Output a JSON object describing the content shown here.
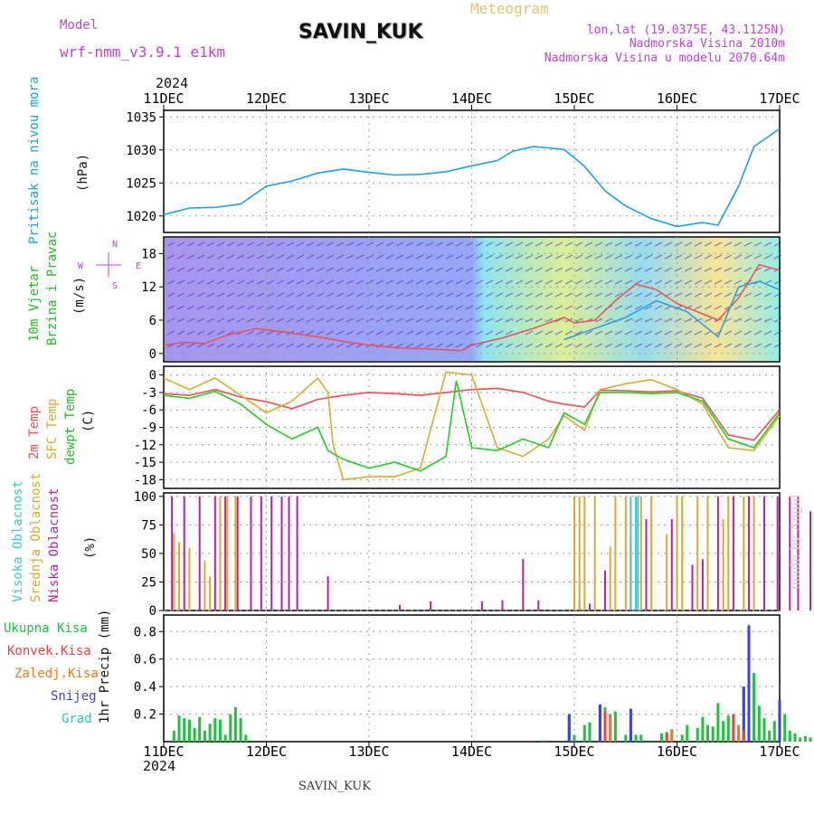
{
  "header": {
    "model_label": "Model",
    "model_value": "wrf-nmm_v3.9.1 e1km",
    "station": "SAVIN_KUK",
    "product": "Meteogram",
    "lonlat": "lon,lat (19.0375E, 43.1125N)",
    "elevation": "Nadmorska Visina 2010m",
    "model_elevation": "Nadmorska Visina u modelu 2070.64m",
    "footer_station": "SAVIN_KUK",
    "credit": "made by Angel",
    "year_top": "2024",
    "year_bottom": "2024"
  },
  "colors": {
    "pressure": "#1ca0e6",
    "temp2m": "#f04e4e",
    "sfc_temp": "#e0a830",
    "dewpt": "#20d020",
    "high_cloud": "#3cc8e0",
    "mid_cloud": "#e0a830",
    "low_cloud": "#c020a0",
    "total_precip": "#20c040",
    "conv_precip": "#f04040",
    "frozen_precip": "#f07820",
    "snow": "#4040e0",
    "graupel": "#20c8c8",
    "wind_label": "#20c020",
    "wind_label2": "#c040e0"
  },
  "x_axis": {
    "tick_labels": [
      "11DEC",
      "12DEC",
      "13DEC",
      "14DEC",
      "15DEC",
      "16DEC",
      "17DEC"
    ]
  },
  "chart_data": [
    {
      "type": "line",
      "id": "pressure",
      "ylabel_lines": [
        "Pritisak na nivou mora",
        "(hPa)"
      ],
      "yticks": [
        "1020",
        "1025",
        "1030",
        "1035"
      ],
      "ylim": [
        1017.5,
        1036
      ],
      "series": [
        {
          "color_key": "pressure",
          "x": [
            0,
            0.25,
            0.5,
            0.75,
            1,
            1.25,
            1.5,
            1.75,
            2,
            2.25,
            2.5,
            2.75,
            3,
            3.25,
            3.4,
            3.6,
            3.9,
            4.1,
            4.3,
            4.5,
            4.75,
            5,
            5.25,
            5.4,
            5.6,
            5.75,
            6
          ],
          "y": [
            1020.2,
            1021.2,
            1021.3,
            1021.8,
            1024.5,
            1025.3,
            1026.5,
            1027.1,
            1026.6,
            1026.2,
            1026.3,
            1026.7,
            1027.6,
            1028.4,
            1029.8,
            1030.5,
            1030.1,
            1027.5,
            1023.8,
            1021.5,
            1019.6,
            1018.4,
            1019.0,
            1018.6,
            1024.5,
            1030.5,
            1033.2
          ]
        }
      ]
    },
    {
      "type": "line",
      "id": "wind",
      "ylabel_lines": [
        "10m Vjetar",
        "Brzina i Pravac",
        "(m/s)"
      ],
      "yticks": [
        "0",
        "6",
        "12",
        "18"
      ],
      "ylim": [
        -1.5,
        21
      ],
      "compass": [
        "N",
        "E",
        "S",
        "W"
      ],
      "series": [
        {
          "name": "gust",
          "color_key": "temp2m",
          "x": [
            0,
            0.2,
            0.4,
            0.6,
            0.9,
            1.2,
            1.5,
            1.8,
            2.0,
            2.3,
            2.6,
            2.9,
            3.0,
            3.3,
            3.6,
            3.9,
            4.0,
            4.2,
            4.4,
            4.6,
            4.8,
            5.0,
            5.2,
            5.4,
            5.6,
            5.8,
            6
          ],
          "y": [
            1.5,
            2.0,
            1.8,
            3.2,
            4.5,
            3.8,
            3.0,
            2.0,
            1.5,
            1.0,
            0.8,
            0.5,
            1.5,
            2.8,
            4.5,
            6.5,
            5.5,
            6.0,
            9.5,
            12.5,
            11.5,
            9.0,
            7.5,
            6.0,
            10.0,
            16.0,
            15.0
          ]
        },
        {
          "name": "mean",
          "color_key": "pressure",
          "x": [
            3.9,
            4.2,
            4.5,
            4.8,
            5.1,
            5.4,
            5.6,
            5.8,
            6
          ],
          "y": [
            2.5,
            4.5,
            6.5,
            9.5,
            7.5,
            3.0,
            12.0,
            13.0,
            11.5
          ]
        }
      ]
    },
    {
      "type": "line",
      "id": "temperature",
      "ylabel_lines": [
        "2m Temp",
        "SFC Temp",
        "dewpt Temp",
        "(C)"
      ],
      "yticks": [
        "0",
        "-3",
        "-6",
        "-9",
        "-12",
        "-15",
        "-18"
      ],
      "ylim": [
        -19.5,
        1.5
      ],
      "series": [
        {
          "name": "2m Temp",
          "color_key": "temp2m",
          "x": [
            0,
            0.25,
            0.5,
            0.75,
            1,
            1.25,
            1.5,
            1.75,
            2,
            2.25,
            2.5,
            2.75,
            3,
            3.25,
            3.5,
            3.75,
            3.9,
            4.1,
            4.25,
            4.5,
            4.75,
            5,
            5.25,
            5.5,
            5.75,
            6
          ],
          "y": [
            -3.2,
            -3.5,
            -2.5,
            -3.8,
            -4.6,
            -5.8,
            -4.2,
            -3.5,
            -3.0,
            -3.2,
            -3.5,
            -3.0,
            -2.5,
            -2.3,
            -3.0,
            -4.5,
            -5.0,
            -5.5,
            -2.6,
            -2.7,
            -2.9,
            -2.7,
            -4.0,
            -10.3,
            -11.2,
            -6.0
          ]
        },
        {
          "name": "SFC Temp",
          "color_key": "sfc_temp",
          "x": [
            0,
            0.25,
            0.5,
            0.75,
            1,
            1.25,
            1.5,
            1.6,
            1.65,
            1.75,
            2,
            2.25,
            2.5,
            2.75,
            3,
            3.25,
            3.5,
            3.75,
            3.9,
            4.1,
            4.25,
            4.5,
            4.75,
            5,
            5.25,
            5.5,
            5.75,
            6
          ],
          "y": [
            -0.5,
            -2.5,
            -0.5,
            -3.5,
            -6.5,
            -4.5,
            -0.5,
            -3.0,
            -12.0,
            -18.0,
            -17.5,
            -17.5,
            -16.0,
            0.5,
            0.0,
            -12.5,
            -14.0,
            -11.0,
            -7.0,
            -9.5,
            -2.5,
            -1.5,
            -0.8,
            -2.5,
            -5.0,
            -12.5,
            -13.0,
            -7.0
          ]
        },
        {
          "name": "dewpt Temp",
          "color_key": "dewpt",
          "x": [
            0,
            0.25,
            0.5,
            0.75,
            1,
            1.25,
            1.5,
            1.6,
            1.75,
            2,
            2.25,
            2.5,
            2.75,
            2.85,
            3,
            3.25,
            3.5,
            3.75,
            3.9,
            4.1,
            4.25,
            4.5,
            4.75,
            5,
            5.25,
            5.5,
            5.75,
            6
          ],
          "y": [
            -3.5,
            -4.0,
            -2.8,
            -5.0,
            -8.5,
            -11.0,
            -9.0,
            -13.0,
            -14.5,
            -16.0,
            -15.0,
            -16.5,
            -14.0,
            -1.0,
            -12.5,
            -13.0,
            -11.0,
            -12.5,
            -6.5,
            -8.5,
            -3.0,
            -3.0,
            -3.2,
            -3.0,
            -4.5,
            -11.0,
            -12.5,
            -6.5
          ]
        }
      ]
    },
    {
      "type": "bar",
      "id": "clouds",
      "ylabel_lines": [
        "Visoka Oblacnost",
        "Srednja Oblacnost",
        "Niska Oblacnost",
        "(%)"
      ],
      "yticks": [
        "0",
        "25",
        "50",
        "75",
        "100"
      ],
      "ylim": [
        0,
        103
      ],
      "series": [
        {
          "name": "Niska Oblacnost",
          "color_key": "low_cloud",
          "x": [
            0.08,
            0.2,
            0.35,
            0.5,
            0.6,
            0.72,
            0.85,
            0.95,
            1.05,
            1.15,
            1.22,
            1.3,
            1.6,
            2.3,
            2.6,
            3.1,
            3.3,
            3.5,
            3.65,
            4.05,
            4.15,
            4.3,
            4.55,
            4.7,
            4.95,
            5.15,
            5.25,
            5.4,
            5.55,
            5.7,
            5.85,
            5.98,
            6.1,
            6.18,
            6.3,
            6.45,
            6.55,
            6.75,
            6.85,
            6.92,
            6.98
          ],
          "y": [
            100,
            100,
            100,
            100,
            100,
            100,
            100,
            100,
            100,
            100,
            100,
            100,
            30,
            5,
            8,
            8,
            9,
            45,
            9,
            5,
            6,
            35,
            60,
            80,
            80,
            40,
            45,
            100,
            100,
            100,
            100,
            100,
            100,
            100,
            87,
            85,
            80,
            55,
            87,
            87,
            87
          ]
        },
        {
          "name": "Srednja Oblacnost",
          "color_key": "mid_cloud",
          "x": [
            0.1,
            0.15,
            0.25,
            0.4,
            0.45,
            0.55,
            0.62,
            0.7,
            4.0,
            4.05,
            4.1,
            4.2,
            4.35,
            4.4,
            4.5,
            4.6,
            4.65,
            4.75,
            4.9,
            5.0,
            5.05,
            5.2,
            5.3,
            5.45,
            5.5,
            5.65,
            5.75
          ],
          "y": [
            68,
            60,
            55,
            44,
            30,
            100,
            100,
            100,
            100,
            100,
            100,
            100,
            56,
            100,
            100,
            100,
            100,
            100,
            67,
            100,
            100,
            100,
            100,
            80,
            100,
            100,
            100
          ]
        },
        {
          "name": "Visoka Oblacnost",
          "color_key": "high_cloud",
          "x": [
            4.55,
            4.6,
            4.62
          ],
          "y": [
            100,
            100,
            100
          ]
        }
      ]
    },
    {
      "type": "bar",
      "id": "precip",
      "ylabel_lines": [
        "1hr Precip (mm)"
      ],
      "yticks": [
        "0.2",
        "0.4",
        "0.6",
        "0.8"
      ],
      "ylim": [
        0,
        0.92
      ],
      "legend": [
        "Ukupna Kisa",
        "Konvek.Kisa",
        "Zaledj.Kisa",
        "Snijeg",
        "Grad"
      ],
      "series": [
        {
          "name": "Ukupna Kisa",
          "color_key": "total_precip",
          "x": [
            0.1,
            0.15,
            0.2,
            0.25,
            0.3,
            0.35,
            0.4,
            0.45,
            0.5,
            0.55,
            0.6,
            0.65,
            0.7,
            0.75,
            0.8,
            3.7,
            3.95,
            4.0,
            4.1,
            4.15,
            4.25,
            4.3,
            4.35,
            4.4,
            4.5,
            4.55,
            4.6,
            4.65,
            4.85,
            4.9,
            4.95,
            5.05,
            5.1,
            5.2,
            5.25,
            5.3,
            5.35,
            5.4,
            5.45,
            5.5,
            5.55,
            5.6,
            5.65,
            5.7,
            5.75,
            5.8,
            5.85,
            5.9,
            5.95,
            6.0,
            6.05,
            6.1,
            6.15,
            6.2,
            6.25,
            6.3,
            6.35,
            6.4,
            6.45,
            6.5,
            6.55,
            6.6,
            6.65,
            6.7,
            6.75,
            6.8,
            6.85,
            6.9,
            6.95
          ],
          "y": [
            0.08,
            0.19,
            0.17,
            0.16,
            0.1,
            0.18,
            0.08,
            0.13,
            0.17,
            0.16,
            0.05,
            0.2,
            0.25,
            0.17,
            0.05,
            0.01,
            0.2,
            0.05,
            0.12,
            0.14,
            0.27,
            0.25,
            0.2,
            0.22,
            0.05,
            0.08,
            0.05,
            0.05,
            0.06,
            0.07,
            0.09,
            0.05,
            0.12,
            0.1,
            0.18,
            0.12,
            0.11,
            0.28,
            0.15,
            0.19,
            0.1,
            0.05,
            0.4,
            0.85,
            0.5,
            0.26,
            0.17,
            0.08,
            0.15,
            0.3,
            0.2,
            0.08,
            0.06,
            0.03,
            0.04,
            0.03,
            0.02,
            0.05,
            0.04,
            0.08,
            0.06,
            0.1,
            0.09,
            0.04,
            0.02,
            0.04,
            0.12,
            0.13,
            0.13
          ]
        },
        {
          "name": "Snijeg",
          "color_key": "snow",
          "x": [
            3.95,
            4.25,
            4.55,
            5.65,
            5.7,
            6.0
          ],
          "y": [
            0.2,
            0.27,
            0.24,
            0.4,
            0.84,
            0.3
          ]
        },
        {
          "name": "Konvek.Kisa",
          "color_key": "conv_precip",
          "x": [
            4.3,
            4.9,
            5.55,
            5.65
          ],
          "y": [
            0.22,
            0.06,
            0.2,
            0.08
          ]
        },
        {
          "name": "Zaledj.Kisa",
          "color_key": "frozen_precip",
          "x": [
            4.35,
            4.95,
            5.6
          ],
          "y": [
            0.19,
            0.08,
            0.12
          ]
        }
      ]
    }
  ]
}
